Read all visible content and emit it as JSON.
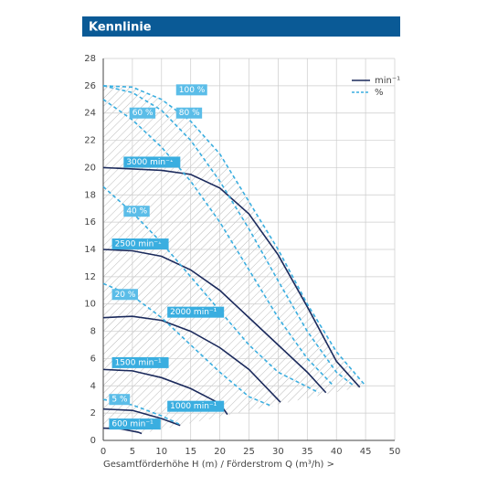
{
  "header": {
    "title": "Kennlinie"
  },
  "chart_data": {
    "type": "line",
    "xlabel": "Gesamtförderhöhe H (m) / Förderstrom Q (m³/h) >",
    "xlim": [
      0,
      50
    ],
    "xticks": [
      0,
      5,
      10,
      15,
      20,
      25,
      30,
      35,
      40,
      45,
      50
    ],
    "ylim": [
      0,
      28
    ],
    "yticks": [
      0,
      2,
      4,
      6,
      8,
      10,
      12,
      14,
      16,
      18,
      20,
      22,
      24,
      26,
      28
    ],
    "grid": true,
    "legend": [
      {
        "label": "min⁻¹",
        "color": "#1b2a5c",
        "dash": false
      },
      {
        "label": "%",
        "color": "#3aaee0",
        "dash": true
      }
    ],
    "series": [
      {
        "name": "3000 min⁻¹",
        "color": "#1b2a5c",
        "dash": false,
        "x": [
          0,
          10,
          15,
          20,
          25,
          30,
          35,
          40,
          44
        ],
        "y": [
          20,
          19.8,
          19.5,
          18.5,
          16.6,
          13.6,
          9.8,
          5.8,
          3.9
        ]
      },
      {
        "name": "2500 min⁻¹",
        "color": "#1b2a5c",
        "dash": false,
        "x": [
          0,
          5,
          10,
          15,
          20,
          25,
          30,
          35,
          38.2
        ],
        "y": [
          14,
          13.9,
          13.5,
          12.5,
          11,
          9,
          7,
          5,
          3.5
        ]
      },
      {
        "name": "2000 min⁻¹",
        "color": "#1b2a5c",
        "dash": false,
        "x": [
          0,
          5,
          10,
          15,
          20,
          25,
          30.4
        ],
        "y": [
          9,
          9.1,
          8.8,
          8,
          6.8,
          5.2,
          2.8
        ]
      },
      {
        "name": "1500 min⁻¹",
        "color": "#1b2a5c",
        "dash": false,
        "x": [
          0,
          5,
          10,
          15,
          20,
          21.3
        ],
        "y": [
          5.2,
          5.1,
          4.6,
          3.8,
          2.7,
          1.9
        ]
      },
      {
        "name": "1000 min⁻¹",
        "color": "#1b2a5c",
        "dash": false,
        "x": [
          0,
          5,
          10,
          13.2
        ],
        "y": [
          2.3,
          2.2,
          1.6,
          1.1
        ]
      },
      {
        "name": "600 min⁻¹",
        "color": "#1b2a5c",
        "dash": false,
        "x": [
          0,
          3,
          6,
          6.6
        ],
        "y": [
          0.9,
          0.85,
          0.6,
          0.5
        ]
      },
      {
        "name": "100 %",
        "color": "#3aaee0",
        "dash": true,
        "x": [
          0,
          5,
          10,
          15,
          20,
          25,
          30,
          35,
          40,
          45
        ],
        "y": [
          26,
          25.9,
          25,
          23.4,
          21,
          17.5,
          14,
          10,
          6.5,
          4
        ]
      },
      {
        "name": "80 %",
        "color": "#3aaee0",
        "dash": true,
        "x": [
          0,
          5,
          10,
          15,
          20,
          25,
          30,
          35,
          40,
          43
        ],
        "y": [
          26,
          25.5,
          24.2,
          22,
          19,
          15.5,
          11.7,
          8,
          5,
          4
        ]
      },
      {
        "name": "60 %",
        "color": "#3aaee0",
        "dash": true,
        "x": [
          0,
          5,
          10,
          15,
          20,
          25,
          30,
          35,
          39.5
        ],
        "y": [
          25,
          23.5,
          21.5,
          19,
          16,
          12.5,
          9,
          6,
          4
        ]
      },
      {
        "name": "40 %",
        "color": "#3aaee0",
        "dash": true,
        "x": [
          0,
          5,
          10,
          15,
          20,
          25,
          30,
          37
        ],
        "y": [
          18.6,
          16.7,
          14.5,
          12,
          9.5,
          7,
          5,
          3.5
        ]
      },
      {
        "name": "20 %",
        "color": "#3aaee0",
        "dash": true,
        "x": [
          0,
          5,
          10,
          15,
          20,
          25,
          29
        ],
        "y": [
          11.5,
          10.6,
          9,
          7,
          5,
          3.2,
          2.5
        ]
      },
      {
        "name": "5 %",
        "color": "#3aaee0",
        "dash": true,
        "x": [
          0,
          5,
          10,
          13
        ],
        "y": [
          3,
          2.6,
          1.8,
          1.2
        ]
      }
    ]
  }
}
